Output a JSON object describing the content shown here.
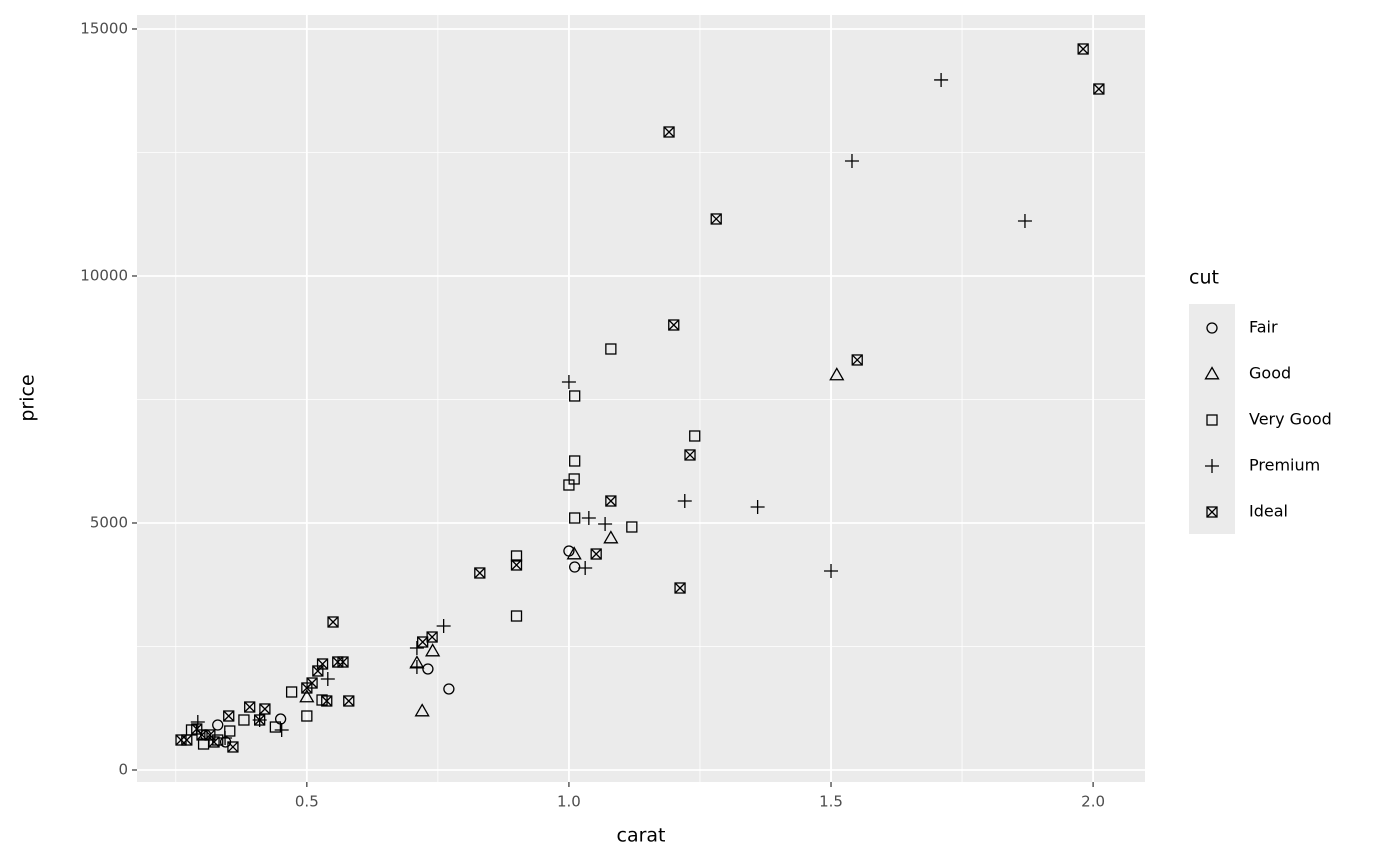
{
  "chart_data": {
    "type": "scatter",
    "x_label": "carat",
    "y_label": "price",
    "legend_title": "cut",
    "legend_position": "right",
    "grid": true,
    "xlim": [
      0.176,
      2.099
    ],
    "ylim": [
      -243,
      15283
    ],
    "xticks": [
      0.5,
      {
        "value": 1,
        "label": "1.0"
      },
      1.5,
      {
        "value": 2,
        "label": "2.0"
      }
    ],
    "yticks": [
      0,
      5000,
      10000,
      15000
    ],
    "xminor": [
      0.25,
      0.75,
      1.25,
      1.75
    ],
    "yminor": [
      2500,
      7500,
      12500
    ],
    "series": [
      {
        "name": "Fair",
        "shape": "circle",
        "color": "#000000",
        "x": [
          1.0,
          1.011,
          0.731,
          0.771,
          0.45,
          0.33,
          0.307,
          0.345
        ],
        "values": [
          4433,
          4109,
          2045,
          1640,
          1032,
          911,
          709,
          567
        ]
      },
      {
        "name": "Good",
        "shape": "triangle",
        "color": "#000000",
        "x": [
          1.511,
          1.08,
          1.01,
          0.74,
          0.71,
          0.72,
          0.5
        ],
        "values": [
          7996,
          4696,
          4372,
          2409,
          2166,
          1194,
          1478
        ]
      },
      {
        "name": "Very Good",
        "shape": "square",
        "color": "#000000",
        "x": [
          1.08,
          1.011,
          1.24,
          1.011,
          1.01,
          1.0,
          1.011,
          1.12,
          0.9,
          0.9,
          0.471,
          0.5,
          0.529,
          0.44,
          0.38,
          0.353,
          0.303,
          0.28,
          0.33
        ],
        "values": [
          8522,
          7571,
          6761,
          6255,
          5891,
          5769,
          5101,
          4919,
          4332,
          3117,
          1579,
          1093,
          1417,
          870,
          1012,
          789,
          526,
          810,
          607
        ]
      },
      {
        "name": "Premium",
        "shape": "plus",
        "color": "#000000",
        "x": [
          1.71,
          1.54,
          1.87,
          1.0,
          1.221,
          1.36,
          1.038,
          1.069,
          1.031,
          1.5,
          0.761,
          0.71,
          0.71,
          0.54,
          0.452,
          0.41,
          0.292,
          0.344
        ],
        "values": [
          13968,
          12328,
          11113,
          7854,
          5445,
          5324,
          5101,
          4980,
          4089,
          4028,
          2915,
          2470,
          2085,
          1842,
          810,
          1012,
          972,
          648
        ]
      },
      {
        "name": "Ideal",
        "shape": "square-cross",
        "color": "#000000",
        "x": [
          1.981,
          2.011,
          1.191,
          1.281,
          1.2,
          1.55,
          1.231,
          1.08,
          1.052,
          0.9,
          0.83,
          1.212,
          0.55,
          0.739,
          0.721,
          0.53,
          0.569,
          0.559,
          0.521,
          0.51,
          0.5,
          0.538,
          0.58,
          0.42,
          0.391,
          0.41,
          0.351,
          0.359,
          0.26,
          0.271,
          0.29,
          0.315,
          0.323,
          0.3
        ],
        "values": [
          14595,
          13785,
          12915,
          11154,
          9008,
          8300,
          6377,
          5445,
          4372,
          4150,
          3988,
          3684,
          2996,
          2692,
          2591,
          2146,
          2186,
          2186,
          2004,
          1761,
          1660,
          1397,
          1397,
          1235,
          1275,
          1012,
          1093,
          466,
          607,
          607,
          830,
          709,
          567,
          709
        ]
      }
    ]
  }
}
